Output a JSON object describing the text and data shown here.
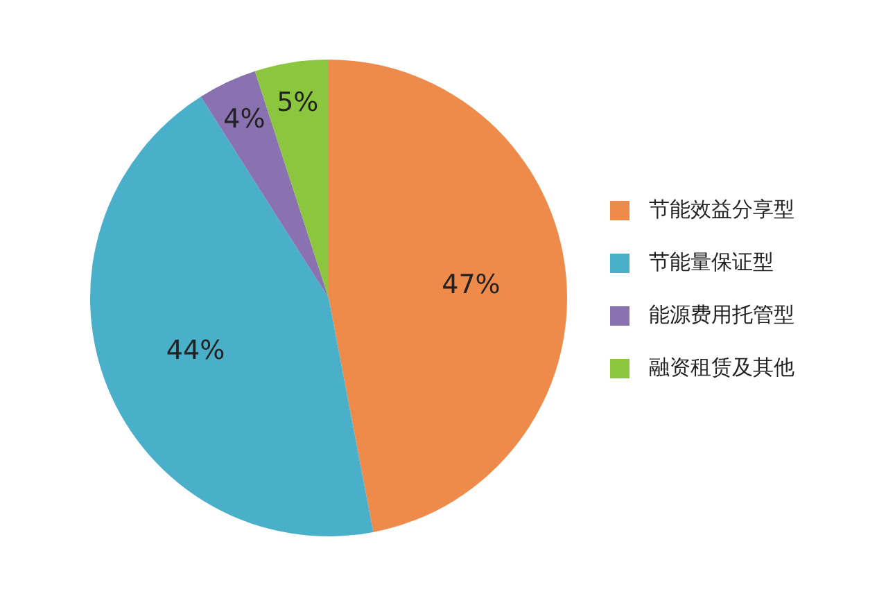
{
  "chart_data": {
    "type": "pie",
    "categories": [
      "节能效益分享型",
      "节能量保证型",
      "能源费用托管型",
      "融资租赁及其他"
    ],
    "values": [
      47,
      44,
      4,
      5
    ],
    "value_labels": [
      "47%",
      "44%",
      "4%",
      "5%"
    ],
    "colors": [
      "#ee8a4a",
      "#4aafc8",
      "#8a72b0",
      "#8cc63f"
    ],
    "legend": "right"
  }
}
